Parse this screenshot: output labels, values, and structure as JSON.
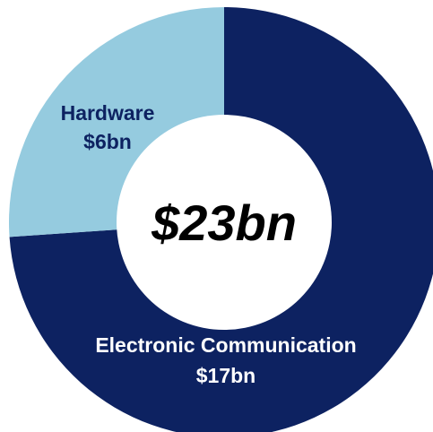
{
  "chart_data": {
    "type": "pie",
    "subtype": "donut",
    "total_label": "$23bn",
    "slices": [
      {
        "name": "Electronic Communication",
        "value": 17,
        "value_label": "$17bn",
        "color": "#0d2261"
      },
      {
        "name": "Hardware",
        "value": 6,
        "value_label": "$6bn",
        "color": "#95cbdf"
      }
    ],
    "legend": "none",
    "label_color": {
      "Electronic Communication": "#ffffff",
      "Hardware": "#0d2261"
    }
  }
}
